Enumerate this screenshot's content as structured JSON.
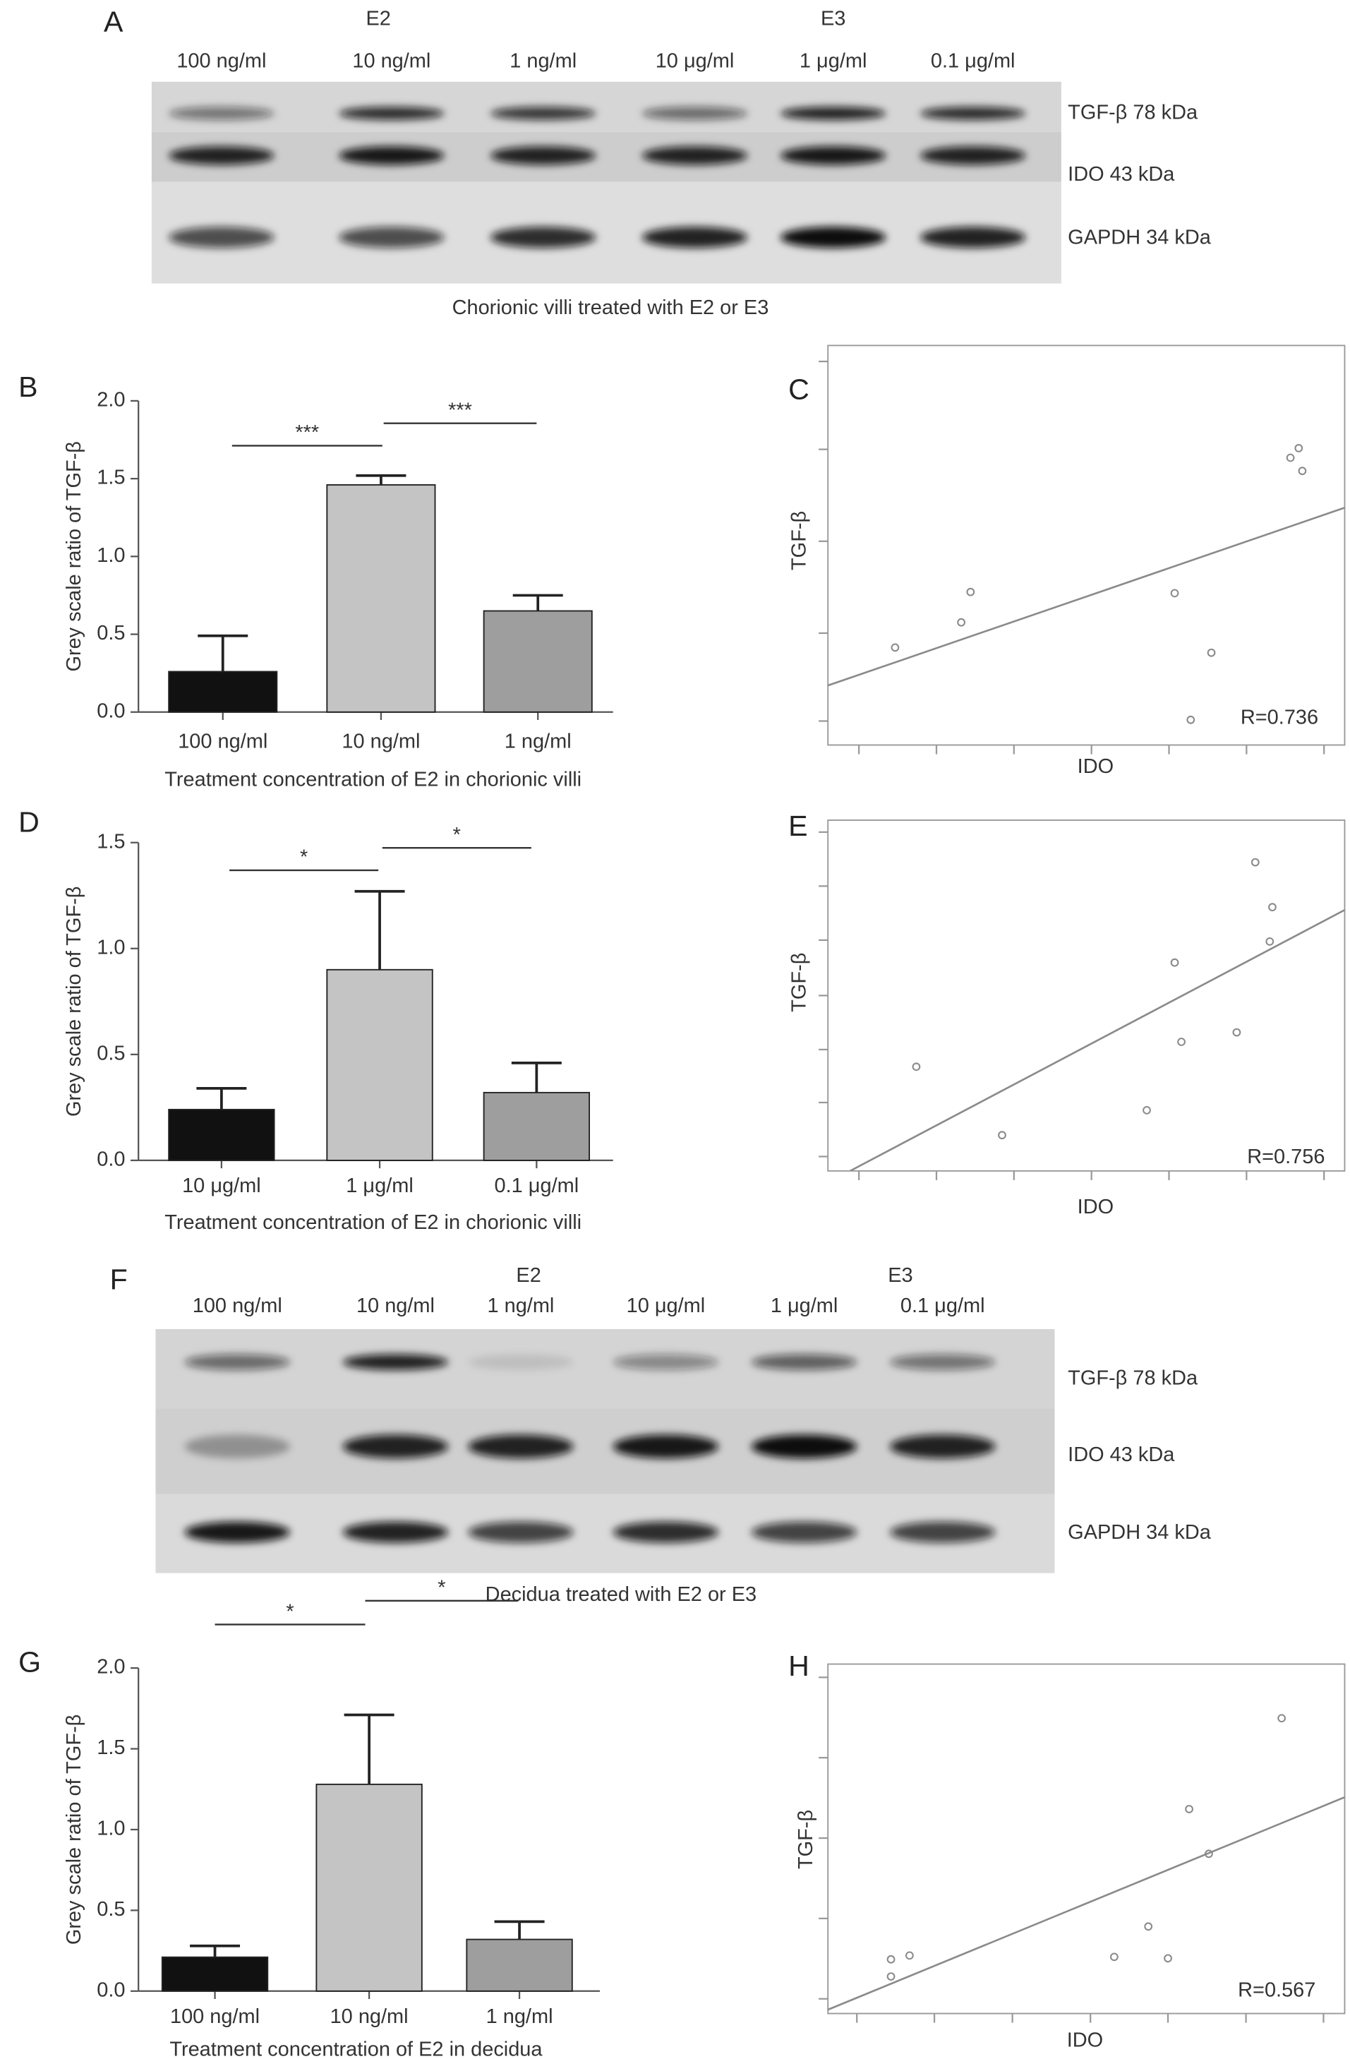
{
  "blots": [
    {
      "panel": "A",
      "groups": [
        "E2",
        "E3"
      ],
      "lanes": [
        "100 ng/ml",
        "10 ng/ml",
        "1 ng/ml",
        "10 μg/ml",
        "1 μg/ml",
        "0.1 μg/ml"
      ],
      "bands": [
        "TGF-β 78 kDa",
        "IDO 43 kDa",
        "GAPDH 34 kDa"
      ],
      "caption": "Chorionic villi treated with E2 or E3"
    },
    {
      "panel": "F",
      "groups": [
        "E2",
        "E3"
      ],
      "lanes": [
        "100 ng/ml",
        "10 ng/ml",
        "1 ng/ml",
        "10 μg/ml",
        "1 μg/ml",
        "0.1 μg/ml"
      ],
      "bands": [
        "TGF-β 78 kDa",
        "IDO 43 kDa",
        "GAPDH 34 kDa"
      ],
      "caption": "Decidua treated with E2 or E3"
    }
  ],
  "chart_data": [
    {
      "type": "bar",
      "panel": "B",
      "categories": [
        "100 ng/ml",
        "10 ng/ml",
        "1 ng/ml"
      ],
      "values": [
        0.26,
        1.46,
        0.65
      ],
      "errors": [
        0.23,
        0.06,
        0.1
      ],
      "colors": [
        "#111111",
        "#c4c4c4",
        "#9e9e9e"
      ],
      "ylim": [
        0,
        2.0
      ],
      "yticks": [
        {
          "value": 0,
          "label": "0.0"
        },
        0.5,
        {
          "value": 1,
          "label": "1.0"
        },
        1.5,
        {
          "value": 2,
          "label": "2.0"
        }
      ],
      "ylabel": "Grey scale ratio of TGF-β",
      "xlabel": "Treatment concentration of E2 in chorionic villi",
      "annotations": [
        "***",
        "***"
      ]
    },
    {
      "type": "scatter",
      "panel": "C",
      "x": [
        1.3,
        2.58,
        2.76,
        6.71,
        7.42,
        7.02,
        8.95,
        9.11,
        9.18
      ],
      "values": [
        2.44,
        3.07,
        3.83,
        3.8,
        2.31,
        0.63,
        7.19,
        7.43,
        6.86
      ],
      "trendline": {
        "x": [
          0,
          10
        ],
        "y": [
          1.49,
          5.94
        ]
      },
      "color": "#8a8a8a",
      "xlim": [
        0,
        10
      ],
      "ylim": [
        0,
        10
      ],
      "xticks": [
        0.6,
        2.1,
        3.6,
        5.1,
        6.6,
        8.1,
        9.6
      ],
      "yticks": [
        0.6,
        2.8,
        5.1,
        7.4,
        9.6
      ],
      "xlabel": "IDO",
      "ylabel": "TGF-β",
      "annotation": "R=0.736"
    },
    {
      "type": "bar",
      "panel": "D",
      "categories": [
        "10 μg/ml",
        "1 μg/ml",
        "0.1 μg/ml"
      ],
      "values": [
        0.24,
        0.9,
        0.32
      ],
      "errors": [
        0.1,
        0.37,
        0.14
      ],
      "colors": [
        "#111111",
        "#c4c4c4",
        "#9e9e9e"
      ],
      "ylim": [
        0,
        1.5
      ],
      "yticks": [
        {
          "value": 0,
          "label": "0.0"
        },
        0.5,
        {
          "value": 1,
          "label": "1.0"
        },
        1.5
      ],
      "ylabel": "Grey scale ratio of TGF-β",
      "xlabel": "Treatment concentration of E2 in chorionic villi",
      "annotations": [
        "*",
        "*"
      ]
    },
    {
      "type": "scatter",
      "panel": "E",
      "x": [
        1.71,
        3.37,
        6.17,
        6.71,
        6.84,
        7.91,
        8.27,
        8.6,
        8.55
      ],
      "values": [
        2.97,
        1.02,
        1.73,
        5.94,
        3.68,
        3.95,
        8.8,
        7.52,
        6.54
      ],
      "trendline": {
        "x": [
          0.43,
          10
        ],
        "y": [
          0,
          7.44
        ]
      },
      "color": "#8a8a8a",
      "xlim": [
        0,
        10
      ],
      "ylim": [
        0,
        10
      ],
      "xticks": [
        0.6,
        2.1,
        3.6,
        5.1,
        6.6,
        8.1,
        9.6
      ],
      "yticks": [
        0.41,
        1.95,
        3.46,
        5.0,
        6.58,
        8.12,
        9.66
      ],
      "xlabel": "IDO",
      "ylabel": "TGF-β",
      "annotation": "R=0.756"
    },
    {
      "type": "bar",
      "panel": "G",
      "categories": [
        "100 ng/ml",
        "10 ng/ml",
        "1 ng/ml"
      ],
      "values": [
        0.21,
        1.28,
        0.32
      ],
      "errors": [
        0.07,
        0.43,
        0.11
      ],
      "colors": [
        "#111111",
        "#c4c4c4",
        "#9e9e9e"
      ],
      "ylim": [
        0,
        2.0
      ],
      "yticks": [
        {
          "value": 0,
          "label": "0.0"
        },
        0.5,
        {
          "value": 1,
          "label": "1.0"
        },
        1.5,
        {
          "value": 2,
          "label": "2.0"
        }
      ],
      "ylabel": "Grey scale ratio of TGF-β",
      "xlabel": "Treatment concentration of E2 in decidua",
      "annotations": [
        "*",
        "*"
      ]
    },
    {
      "type": "scatter",
      "panel": "H",
      "x": [
        1.22,
        1.58,
        1.22,
        5.54,
        6.2,
        6.58,
        6.99,
        7.37,
        8.78
      ],
      "values": [
        1.55,
        1.66,
        1.06,
        1.62,
        2.49,
        1.58,
        5.85,
        4.57,
        8.45
      ],
      "trendline": {
        "x": [
          0,
          10
        ],
        "y": [
          0.11,
          6.19
        ]
      },
      "color": "#8a8a8a",
      "xlim": [
        0,
        10
      ],
      "ylim": [
        0,
        10
      ],
      "xticks": [
        0.56,
        2.06,
        3.57,
        5.08,
        6.58,
        8.09,
        9.59
      ],
      "yticks": [
        0.42,
        2.72,
        5.02,
        7.32,
        9.62
      ],
      "xlabel": "IDO",
      "ylabel": "TGF-β",
      "annotation": "R=0.567"
    }
  ]
}
